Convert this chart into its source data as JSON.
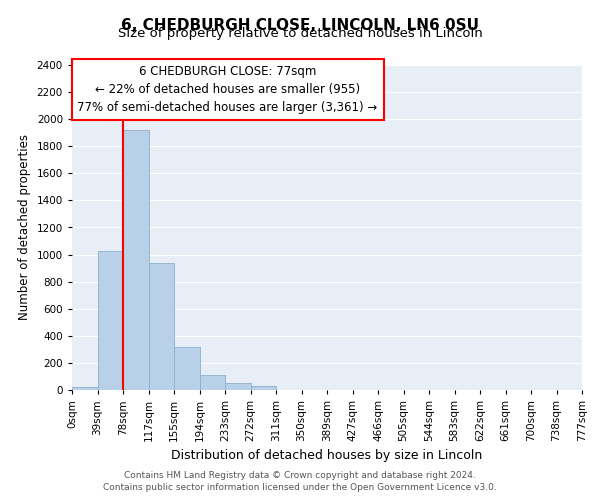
{
  "title": "6, CHEDBURGH CLOSE, LINCOLN, LN6 0SU",
  "subtitle": "Size of property relative to detached houses in Lincoln",
  "xlabel": "Distribution of detached houses by size in Lincoln",
  "ylabel": "Number of detached properties",
  "bin_labels": [
    "0sqm",
    "39sqm",
    "78sqm",
    "117sqm",
    "155sqm",
    "194sqm",
    "233sqm",
    "272sqm",
    "311sqm",
    "350sqm",
    "389sqm",
    "427sqm",
    "466sqm",
    "505sqm",
    "544sqm",
    "583sqm",
    "622sqm",
    "661sqm",
    "700sqm",
    "738sqm",
    "777sqm"
  ],
  "bar_values": [
    25,
    1030,
    1920,
    940,
    320,
    110,
    50,
    30,
    0,
    0,
    0,
    0,
    0,
    0,
    0,
    0,
    0,
    0,
    0,
    0
  ],
  "bar_color": "#b8d0e8",
  "annotation_line1": "6 CHEDBURGH CLOSE: 77sqm",
  "annotation_line2": "← 22% of detached houses are smaller (955)",
  "annotation_line3": "77% of semi-detached houses are larger (3,361) →",
  "box_edge_color": "red",
  "red_line_color": "red",
  "ylim": [
    0,
    2400
  ],
  "yticks": [
    0,
    200,
    400,
    600,
    800,
    1000,
    1200,
    1400,
    1600,
    1800,
    2000,
    2200,
    2400
  ],
  "grid_color": "#e8eef5",
  "footer_text": "Contains HM Land Registry data © Crown copyright and database right 2024.\nContains public sector information licensed under the Open Government Licence v3.0.",
  "title_fontsize": 11,
  "subtitle_fontsize": 9.5,
  "xlabel_fontsize": 9,
  "ylabel_fontsize": 8.5,
  "tick_fontsize": 7.5,
  "annotation_fontsize": 8.5,
  "footer_fontsize": 6.5
}
